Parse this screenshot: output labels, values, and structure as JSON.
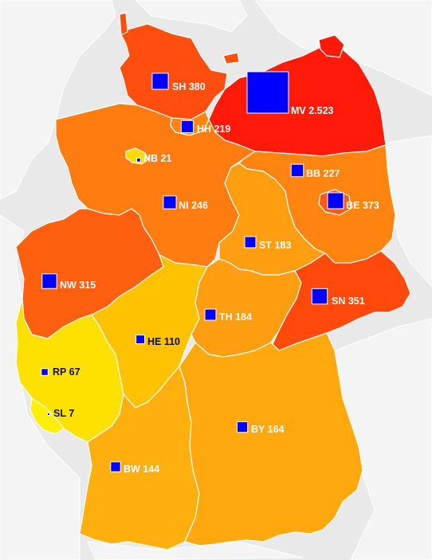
{
  "map": {
    "background_color": "#e9e9e9",
    "marker_color": "#0000ff",
    "states": [
      {
        "code": "SH",
        "value_label": "380",
        "value": 380,
        "fill": "#ff4e0e",
        "text": "SH 380"
      },
      {
        "code": "MV",
        "value_label": "2.523",
        "value": 2523,
        "fill": "#ff1a0a",
        "text": "MV 2.523"
      },
      {
        "code": "HH",
        "value_label": "219",
        "value": 219,
        "fill": "#ff8410",
        "text": "HH 219"
      },
      {
        "code": "HB",
        "value_label": "21",
        "value": 21,
        "fill": "#ffdc00",
        "text": "HB 21"
      },
      {
        "code": "BB",
        "value_label": "227",
        "value": 227,
        "fill": "#ff8410",
        "text": "BB 227"
      },
      {
        "code": "BE",
        "value_label": "373",
        "value": 373,
        "fill": "#ff5a10",
        "text": "BE 373"
      },
      {
        "code": "NI",
        "value_label": "246",
        "value": 246,
        "fill": "#ff7d10",
        "text": "NI 246"
      },
      {
        "code": "ST",
        "value_label": "183",
        "value": 183,
        "fill": "#ff9e10",
        "text": "ST 183"
      },
      {
        "code": "NW",
        "value_label": "315",
        "value": 315,
        "fill": "#ff6010",
        "text": "NW 315"
      },
      {
        "code": "SN",
        "value_label": "351",
        "value": 351,
        "fill": "#ff4a0c",
        "text": "SN 351"
      },
      {
        "code": "TH",
        "value_label": "184",
        "value": 184,
        "fill": "#ff9e10",
        "text": "TH 184"
      },
      {
        "code": "HE",
        "value_label": "110",
        "value": 110,
        "fill": "#ffc200",
        "text": "HE 110"
      },
      {
        "code": "RP",
        "value_label": "67",
        "value": 67,
        "fill": "#ffe100",
        "text": "RP 67"
      },
      {
        "code": "SL",
        "value_label": "7",
        "value": 7,
        "fill": "#ffef00",
        "text": "SL 7"
      },
      {
        "code": "BY",
        "value_label": "164",
        "value": 164,
        "fill": "#ffa90e",
        "text": "BY 164"
      },
      {
        "code": "BW",
        "value_label": "144",
        "value": 144,
        "fill": "#ffb00e",
        "text": "BW 144"
      }
    ]
  }
}
